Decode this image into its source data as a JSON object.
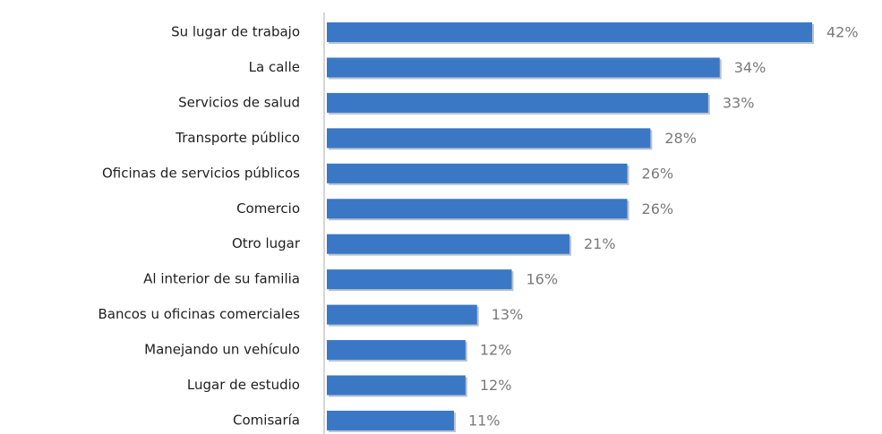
{
  "chart_data": {
    "type": "bar",
    "orientation": "horizontal",
    "categories": [
      "Su lugar de trabajo",
      "La calle",
      "Servicios de salud",
      "Transporte público",
      "Oficinas de servicios públicos",
      "Comercio",
      "Otro lugar",
      "Al interior de su familia",
      "Bancos u oficinas comerciales",
      "Manejando un vehículo",
      "Lugar de estudio",
      "Comisaría"
    ],
    "values": [
      42,
      34,
      33,
      28,
      26,
      26,
      21,
      16,
      13,
      12,
      12,
      11
    ],
    "value_labels": [
      "42%",
      "34%",
      "33%",
      "28%",
      "26%",
      "26%",
      "21%",
      "16%",
      "13%",
      "12%",
      "12%",
      "11%"
    ],
    "color": "#3a78c6"
  }
}
